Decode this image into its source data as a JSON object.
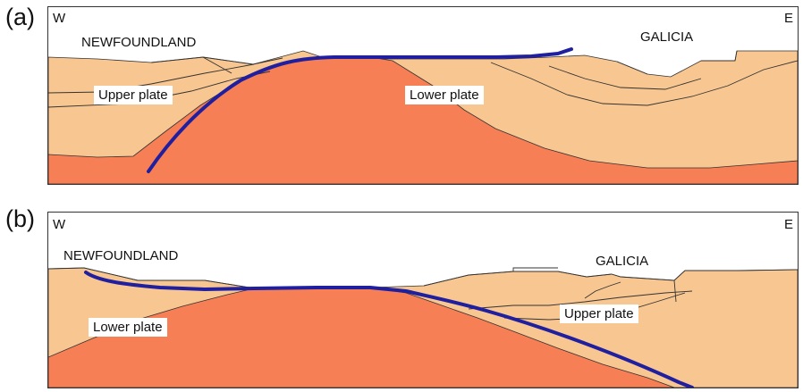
{
  "colors": {
    "upper_crust": "#f8c690",
    "lower_plate": "#f77f55",
    "detachment": "#1f1f9f",
    "outline": "#333333"
  },
  "panels": [
    {
      "letter": "(a)",
      "west": "W",
      "east": "E",
      "left_region": "NEWFOUNDLAND",
      "right_region": "GALICIA",
      "labels": [
        "Upper plate",
        "Lower plate"
      ]
    },
    {
      "letter": "(b)",
      "west": "W",
      "east": "E",
      "left_region": "NEWFOUNDLAND",
      "right_region": "GALICIA",
      "labels": [
        "Lower plate",
        "Upper plate"
      ]
    }
  ]
}
